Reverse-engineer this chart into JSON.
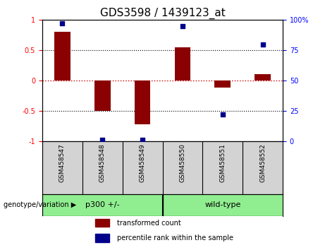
{
  "title": "GDS3598 / 1439123_at",
  "samples": [
    "GSM458547",
    "GSM458548",
    "GSM458549",
    "GSM458550",
    "GSM458551",
    "GSM458552"
  ],
  "red_bars": [
    0.8,
    -0.5,
    -0.73,
    0.55,
    -0.12,
    0.1
  ],
  "blue_dots": [
    97,
    1,
    1,
    95,
    22,
    80
  ],
  "group1_label": "p300 +/-",
  "group2_label": "wild-type",
  "group_split": 3,
  "genotype_label": "genotype/variation",
  "bar_color": "#8B0000",
  "dot_color": "#00008B",
  "group_color": "#90ee90",
  "label_bg_color": "#d3d3d3",
  "ylim_left": [
    -1,
    1
  ],
  "ylim_right": [
    0,
    100
  ],
  "yticks_left": [
    -1,
    -0.5,
    0,
    0.5,
    1
  ],
  "yticks_right": [
    0,
    25,
    50,
    75,
    100
  ],
  "hlines": [
    0.5,
    -0.5
  ],
  "zero_line_color": "#cc0000",
  "background_color": "#ffffff",
  "legend_labels": [
    "transformed count",
    "percentile rank within the sample"
  ],
  "title_fontsize": 11,
  "tick_fontsize": 7,
  "label_fontsize": 6.5,
  "group_fontsize": 8,
  "legend_fontsize": 7
}
